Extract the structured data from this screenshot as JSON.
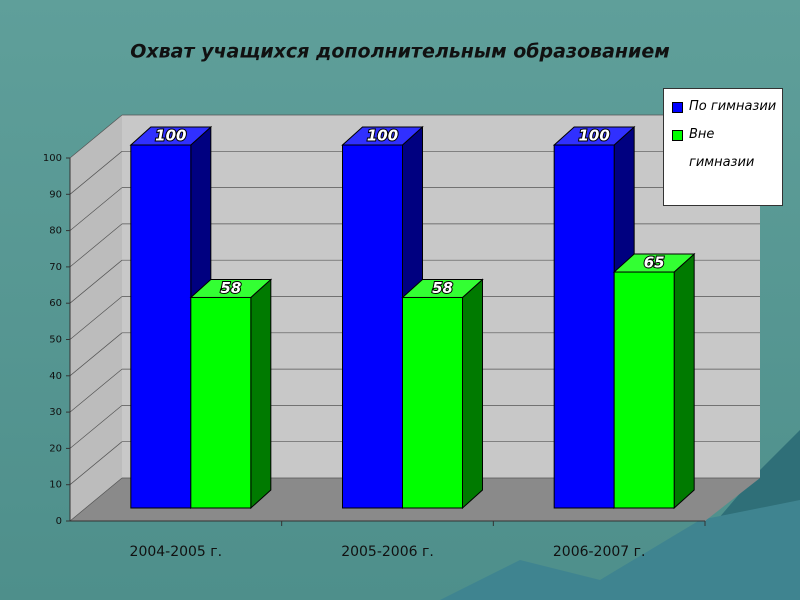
{
  "chart_data": {
    "type": "bar3d",
    "title": "Охват учащихся дополнительным образованием",
    "categories": [
      "2004-2005 г.",
      "2005-2006 г.",
      "2006-2007 г."
    ],
    "series": [
      {
        "name": "По гимназии",
        "color": "#0000ff",
        "values": [
          100,
          100,
          100
        ]
      },
      {
        "name": "Вне гимназии",
        "color": "#00ff00",
        "values": [
          58,
          58,
          65
        ]
      }
    ],
    "ylim": [
      0,
      100
    ],
    "yticks": [
      0,
      10,
      20,
      30,
      40,
      50,
      60,
      70,
      80,
      90,
      100
    ],
    "grid": true,
    "legend": "top-right"
  }
}
